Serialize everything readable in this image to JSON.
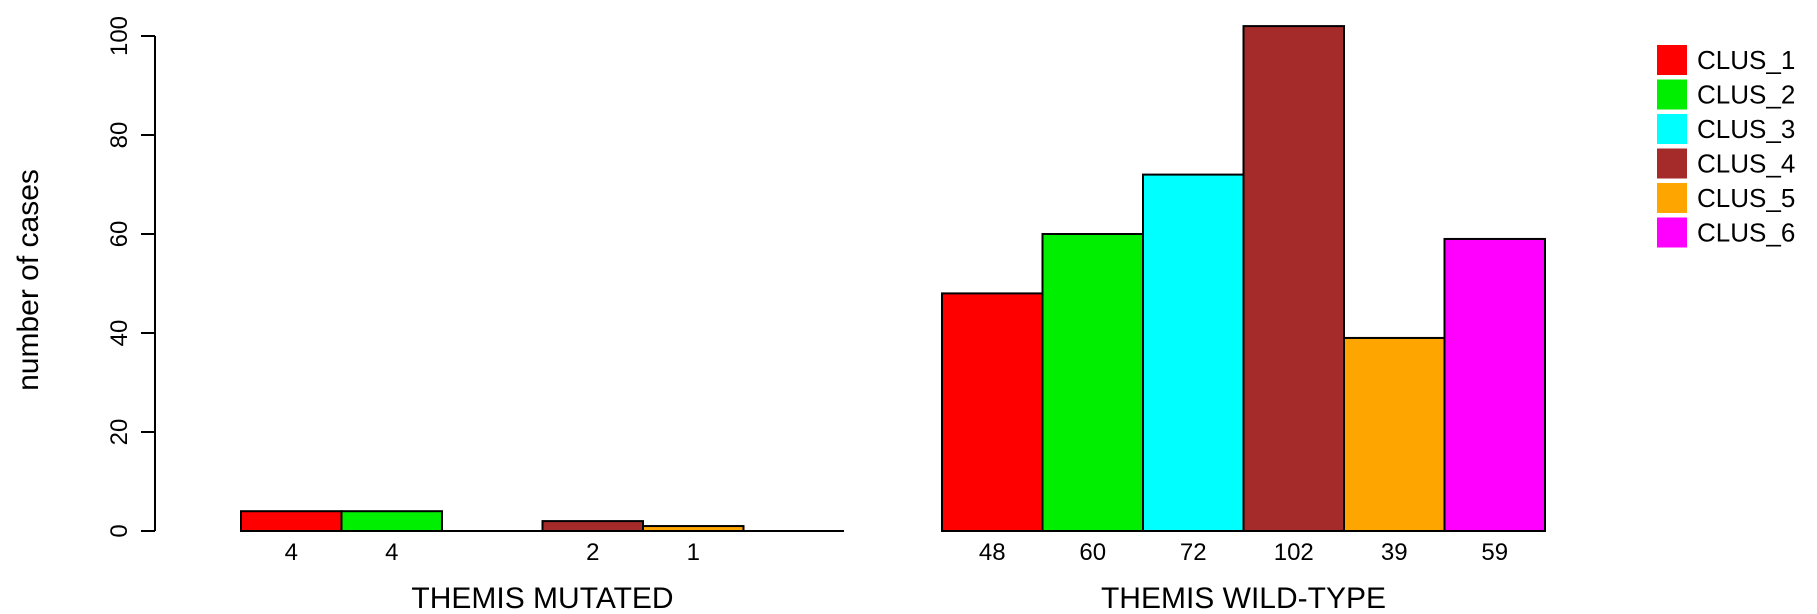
{
  "chart_data": {
    "type": "bar",
    "ylabel": "number of cases",
    "ylim": [
      0,
      100
    ],
    "yticks": [
      0,
      20,
      40,
      60,
      80,
      100
    ],
    "grid": false,
    "legend_position": "top-right",
    "series": [
      {
        "name": "CLUS_1",
        "color": "#ff0000"
      },
      {
        "name": "CLUS_2",
        "color": "#00ee00"
      },
      {
        "name": "CLUS_3",
        "color": "#00ffff"
      },
      {
        "name": "CLUS_4",
        "color": "#a52a2a"
      },
      {
        "name": "CLUS_5",
        "color": "#ffa500"
      },
      {
        "name": "CLUS_6",
        "color": "#ff00ff"
      }
    ],
    "groups": [
      {
        "label": "THEMIS MUTATED",
        "values": [
          4,
          4,
          0,
          2,
          1,
          0
        ],
        "value_labels": [
          "4",
          "4",
          "",
          "2",
          "1",
          ""
        ]
      },
      {
        "label": "THEMIS WILD-TYPE",
        "values": [
          48,
          60,
          72,
          102,
          39,
          59
        ],
        "value_labels": [
          "48",
          "60",
          "72",
          "102",
          "39",
          "59"
        ]
      }
    ]
  }
}
